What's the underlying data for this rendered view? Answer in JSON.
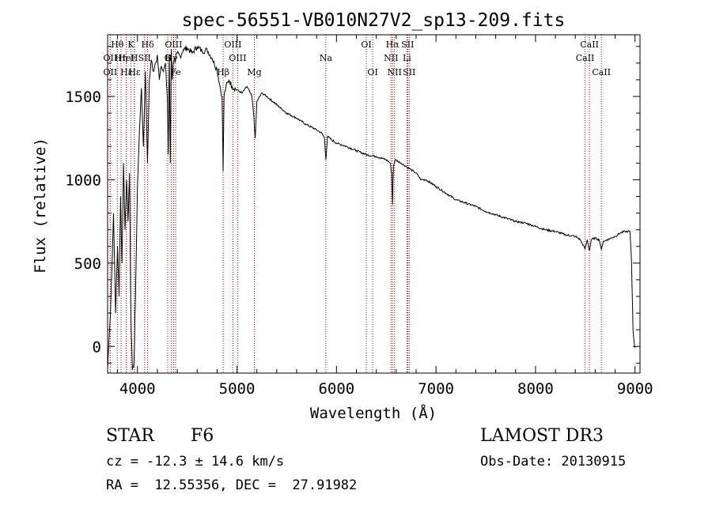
{
  "chart_data": {
    "type": "line",
    "title": "spec-56551-VB010N27V2_sp13-209.fits",
    "xlabel": "Wavelength (Å)",
    "ylabel": "Flux (relative)",
    "xlim": [
      3700,
      9050
    ],
    "ylim": [
      -160,
      1870
    ],
    "xticks": [
      4000,
      5000,
      6000,
      7000,
      8000,
      9000
    ],
    "yticks": [
      0,
      500,
      1000,
      1500
    ],
    "series": [
      {
        "name": "flux",
        "x": [
          3700,
          3720,
          3740,
          3760,
          3780,
          3800,
          3815,
          3830,
          3845,
          3860,
          3875,
          3890,
          3905,
          3920,
          3935,
          3950,
          3965,
          3980,
          4000,
          4020,
          4040,
          4060,
          4080,
          4101,
          4120,
          4140,
          4160,
          4180,
          4200,
          4220,
          4240,
          4260,
          4280,
          4300,
          4310,
          4320,
          4330,
          4340,
          4350,
          4360,
          4380,
          4400,
          4430,
          4460,
          4500,
          4550,
          4600,
          4650,
          4700,
          4750,
          4800,
          4830,
          4850,
          4861,
          4870,
          4890,
          4920,
          4950,
          5000,
          5050,
          5100,
          5150,
          5170,
          5183,
          5200,
          5250,
          5300,
          5400,
          5500,
          5600,
          5700,
          5800,
          5850,
          5880,
          5893,
          5910,
          5950,
          6000,
          6100,
          6200,
          6300,
          6400,
          6500,
          6540,
          6555,
          6563,
          6572,
          6590,
          6650,
          6700,
          6750,
          6800,
          6850,
          6900,
          7000,
          7100,
          7200,
          7300,
          7400,
          7500,
          7600,
          7700,
          7800,
          7900,
          8000,
          8100,
          8200,
          8300,
          8400,
          8450,
          8498,
          8520,
          8542,
          8560,
          8600,
          8640,
          8662,
          8680,
          8720,
          8760,
          8800,
          8850,
          8900,
          8930,
          8950,
          8965,
          8980,
          8990,
          9000
        ],
        "y": [
          -130,
          100,
          400,
          800,
          200,
          600,
          300,
          900,
          500,
          1100,
          700,
          1000,
          750,
          1040,
          150,
          -140,
          -100,
          300,
          950,
          1300,
          1550,
          1200,
          1650,
          1100,
          1600,
          1720,
          1650,
          1700,
          1750,
          1600,
          1680,
          1650,
          1700,
          1500,
          1150,
          1750,
          1100,
          1780,
          1600,
          1700,
          1720,
          1760,
          1740,
          1780,
          1790,
          1760,
          1800,
          1770,
          1780,
          1730,
          1660,
          1560,
          1500,
          1050,
          1500,
          1560,
          1600,
          1560,
          1540,
          1520,
          1560,
          1500,
          1380,
          1250,
          1470,
          1520,
          1500,
          1450,
          1400,
          1370,
          1330,
          1300,
          1280,
          1250,
          1120,
          1260,
          1240,
          1220,
          1200,
          1175,
          1150,
          1140,
          1120,
          1100,
          1040,
          850,
          1080,
          1120,
          1100,
          1080,
          1060,
          1040,
          1000,
          1000,
          960,
          920,
          880,
          860,
          840,
          810,
          790,
          770,
          750,
          740,
          720,
          700,
          690,
          670,
          660,
          640,
          585,
          640,
          575,
          640,
          650,
          640,
          580,
          630,
          640,
          650,
          660,
          680,
          690,
          690,
          690,
          500,
          100,
          30,
          -10
        ]
      }
    ],
    "lines": [
      {
        "name": "Hθ",
        "wl": 3798,
        "row": 0
      },
      {
        "name": "OII",
        "wl": 3727,
        "row": 1
      },
      {
        "name": "OII",
        "wl": 3727,
        "row": 2
      },
      {
        "name": "Hη",
        "wl": 3835,
        "row": 1
      },
      {
        "name": "Hε",
        "wl": 3889,
        "row": 2
      },
      {
        "name": "HeI",
        "wl": 3888,
        "row": 1
      },
      {
        "name": "K",
        "wl": 3934,
        "row": 0
      },
      {
        "name": "H",
        "wl": 3968,
        "row": 1
      },
      {
        "name": "SII",
        "wl": 4072,
        "row": 1
      },
      {
        "name": "Hδ",
        "wl": 4102,
        "row": 0
      },
      {
        "name": "Hε",
        "wl": 3970,
        "row": 2
      },
      {
        "name": "G",
        "wl": 4304,
        "row": 1
      },
      {
        "name": "OIII",
        "wl": 4363,
        "row": 0
      },
      {
        "name": "Hγ",
        "wl": 4340,
        "row": 1
      },
      {
        "name": "Fe",
        "wl": 4383,
        "row": 2
      },
      {
        "name": "OIII",
        "wl": 4959,
        "row": 0
      },
      {
        "name": "OIII",
        "wl": 5007,
        "row": 1
      },
      {
        "name": "Hβ",
        "wl": 4861,
        "row": 2
      },
      {
        "name": "Mg",
        "wl": 5175,
        "row": 2
      },
      {
        "name": "Na",
        "wl": 5893,
        "row": 1
      },
      {
        "name": "OI",
        "wl": 6300,
        "row": 0
      },
      {
        "name": "OI",
        "wl": 6364,
        "row": 2
      },
      {
        "name": "Hα",
        "wl": 6563,
        "row": 0
      },
      {
        "name": "NII",
        "wl": 6548,
        "row": 1
      },
      {
        "name": "NII",
        "wl": 6583,
        "row": 2
      },
      {
        "name": "SII",
        "wl": 6716,
        "row": 0
      },
      {
        "name": "Li",
        "wl": 6708,
        "row": 1
      },
      {
        "name": "SII",
        "wl": 6731,
        "row": 2
      },
      {
        "name": "CaII",
        "wl": 8542,
        "row": 0
      },
      {
        "name": "CaII",
        "wl": 8498,
        "row": 1
      },
      {
        "name": "CaII",
        "wl": 8662,
        "row": 2
      }
    ]
  },
  "info": {
    "class": "STAR",
    "subclass": "F6",
    "survey": "LAMOST DR3",
    "cz": "cz = -12.3 ± 14.6 km/s",
    "obs_date": "Obs-Date: 20130915",
    "radec": "RA =  12.55356, DEC =  27.91982"
  }
}
